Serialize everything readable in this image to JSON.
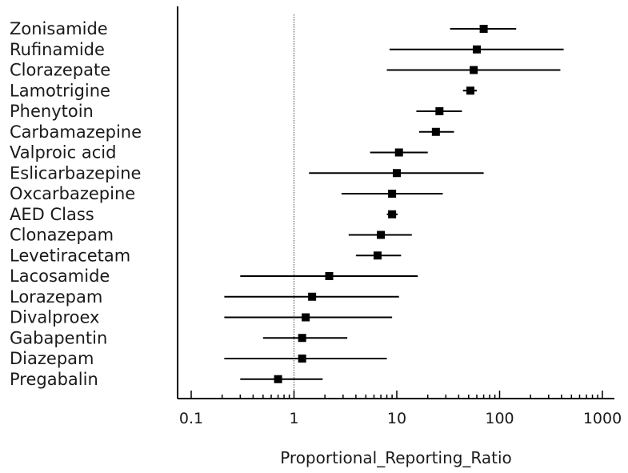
{
  "chart_data": {
    "type": "forest",
    "title": "",
    "xlabel": "Proportional_Reporting_Ratio",
    "ylabel": "",
    "x_scale": "log10",
    "xlim": [
      0.07,
      1400
    ],
    "x_ticks": [
      0.1,
      1,
      10,
      100,
      1000
    ],
    "x_tick_labels": [
      "0.1",
      "1",
      "10",
      "100",
      "1000"
    ],
    "reference_line": 1,
    "grid": false,
    "legend": "none",
    "categories": [
      "Zonisamide",
      "Rufinamide",
      "Clorazepate",
      "Lamotrigine",
      "Phenytoin",
      "Carbamazepine",
      "Valproic acid",
      "Eslicarbazepine",
      "Oxcarbazepine",
      "AED Class",
      "Clonazepam",
      "Levetiracetam",
      "Lacosamide",
      "Lorazepam",
      "Divalproex",
      "Gabapentin",
      "Diazepam",
      "Pregabalin"
    ],
    "series": [
      {
        "estimate": [
          70,
          60,
          56,
          52,
          26,
          24,
          10.5,
          10,
          9,
          9,
          7,
          6.5,
          2.2,
          1.5,
          1.3,
          1.2,
          1.2,
          0.7
        ],
        "lower": [
          33,
          8.5,
          8,
          44,
          15.5,
          16.5,
          5.5,
          1.4,
          2.9,
          8,
          3.4,
          4,
          0.3,
          0.21,
          0.21,
          0.5,
          0.21,
          0.3
        ],
        "upper": [
          145,
          420,
          390,
          60,
          43,
          36,
          20,
          70,
          28,
          10.2,
          14,
          11,
          16,
          10.5,
          9,
          3.3,
          8,
          1.9
        ]
      }
    ],
    "colors": {
      "marker": "#000000",
      "axis": "#000000",
      "reference_line": "#444444"
    }
  }
}
